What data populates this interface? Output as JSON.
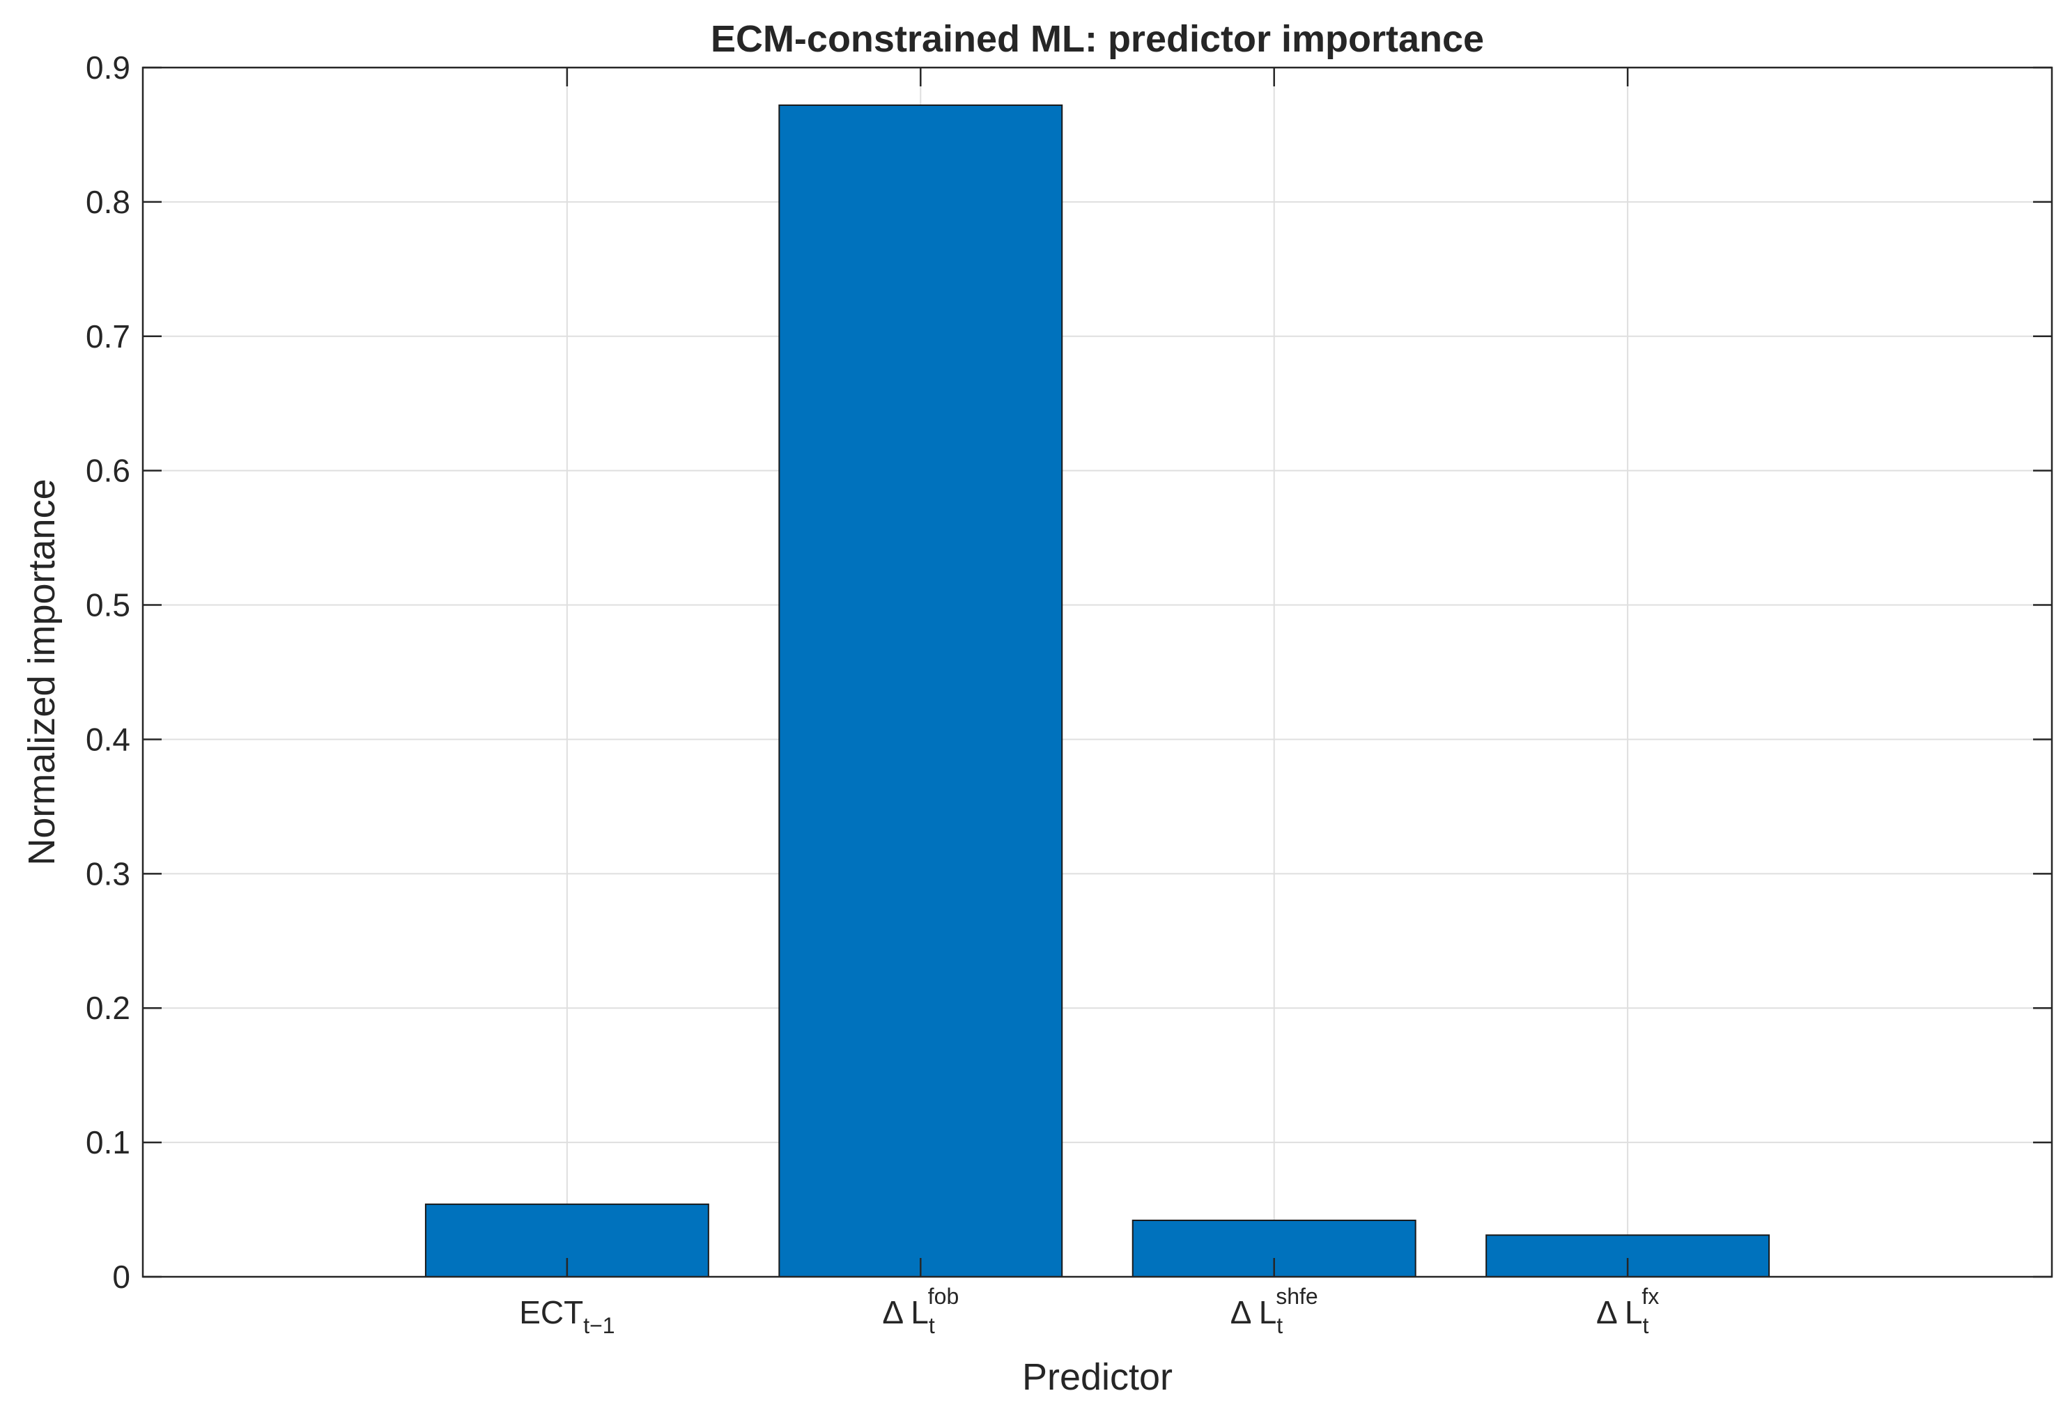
{
  "chart_data": {
    "type": "bar",
    "title": "ECM-constrained ML: predictor importance",
    "xlabel": "Predictor",
    "ylabel": "Normalized importance",
    "categories": [
      {
        "base": "ECT",
        "sub": "t−1",
        "sup": ""
      },
      {
        "base": "Δ  L",
        "sub": "t",
        "sup": "fob"
      },
      {
        "base": "Δ  L",
        "sub": "t",
        "sup": "shfe"
      },
      {
        "base": "Δ  L",
        "sub": "t",
        "sup": "fx"
      }
    ],
    "values": [
      0.054,
      0.872,
      0.042,
      0.031
    ],
    "ylim": [
      0,
      0.9
    ],
    "xlim": [
      -0.2,
      5.2
    ],
    "yticks": [
      "0",
      "0.1",
      "0.2",
      "0.3",
      "0.4",
      "0.5",
      "0.6",
      "0.7",
      "0.8",
      "0.9"
    ],
    "grid": true,
    "bar_color": "#0072BD"
  }
}
